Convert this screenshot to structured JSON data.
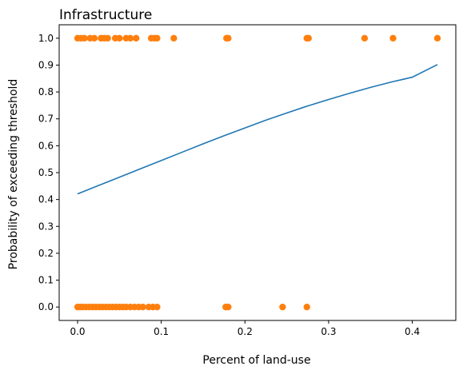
{
  "chart_data": {
    "type": "scatter",
    "title": "Infrastructure",
    "xlabel": "Percent of land-use",
    "ylabel": "Probability of exceeding threshold",
    "xlim": [
      -0.022,
      0.452
    ],
    "ylim": [
      -0.05,
      1.05
    ],
    "xticks": [
      0.0,
      0.1,
      0.2,
      0.3,
      0.4
    ],
    "xtick_labels": [
      "0.0",
      "0.1",
      "0.2",
      "0.3",
      "0.4"
    ],
    "yticks": [
      0.0,
      0.1,
      0.2,
      0.3,
      0.4,
      0.5,
      0.6,
      0.7,
      0.8,
      0.9,
      1.0
    ],
    "ytick_labels": [
      "0.0",
      "0.1",
      "0.2",
      "0.3",
      "0.4",
      "0.5",
      "0.6",
      "0.7",
      "0.8",
      "0.9",
      "1.0"
    ],
    "grid": false,
    "colors": {
      "points": "#ff7f0e",
      "curve": "#1f77b4"
    },
    "series": [
      {
        "kind": "points",
        "points": [
          [
            0.0,
            1
          ],
          [
            0.004,
            1
          ],
          [
            0.008,
            1
          ],
          [
            0.015,
            1
          ],
          [
            0.02,
            1
          ],
          [
            0.028,
            1
          ],
          [
            0.032,
            1
          ],
          [
            0.036,
            1
          ],
          [
            0.045,
            1
          ],
          [
            0.05,
            1
          ],
          [
            0.058,
            1
          ],
          [
            0.063,
            1
          ],
          [
            0.07,
            1
          ],
          [
            0.088,
            1
          ],
          [
            0.092,
            1
          ],
          [
            0.095,
            1
          ],
          [
            0.115,
            1
          ],
          [
            0.178,
            1
          ],
          [
            0.18,
            1
          ],
          [
            0.274,
            1
          ],
          [
            0.276,
            1
          ],
          [
            0.343,
            1
          ],
          [
            0.377,
            1
          ],
          [
            0.43,
            1
          ],
          [
            0.0,
            0
          ],
          [
            0.003,
            0
          ],
          [
            0.006,
            0
          ],
          [
            0.01,
            0
          ],
          [
            0.014,
            0
          ],
          [
            0.018,
            0
          ],
          [
            0.022,
            0
          ],
          [
            0.026,
            0
          ],
          [
            0.03,
            0
          ],
          [
            0.034,
            0
          ],
          [
            0.038,
            0
          ],
          [
            0.042,
            0
          ],
          [
            0.046,
            0
          ],
          [
            0.05,
            0
          ],
          [
            0.054,
            0
          ],
          [
            0.058,
            0
          ],
          [
            0.063,
            0
          ],
          [
            0.068,
            0
          ],
          [
            0.073,
            0
          ],
          [
            0.078,
            0
          ],
          [
            0.085,
            0
          ],
          [
            0.09,
            0
          ],
          [
            0.095,
            0
          ],
          [
            0.177,
            0
          ],
          [
            0.18,
            0
          ],
          [
            0.245,
            0
          ],
          [
            0.274,
            0
          ]
        ]
      },
      {
        "kind": "curve",
        "points": [
          [
            0.0,
            0.421
          ],
          [
            0.025,
            0.452
          ],
          [
            0.05,
            0.483
          ],
          [
            0.075,
            0.514
          ],
          [
            0.1,
            0.545
          ],
          [
            0.125,
            0.576
          ],
          [
            0.15,
            0.607
          ],
          [
            0.175,
            0.637
          ],
          [
            0.2,
            0.666
          ],
          [
            0.225,
            0.695
          ],
          [
            0.25,
            0.722
          ],
          [
            0.275,
            0.748
          ],
          [
            0.3,
            0.772
          ],
          [
            0.325,
            0.795
          ],
          [
            0.35,
            0.817
          ],
          [
            0.375,
            0.837
          ],
          [
            0.4,
            0.855
          ],
          [
            0.43,
            0.902
          ]
        ]
      }
    ]
  }
}
